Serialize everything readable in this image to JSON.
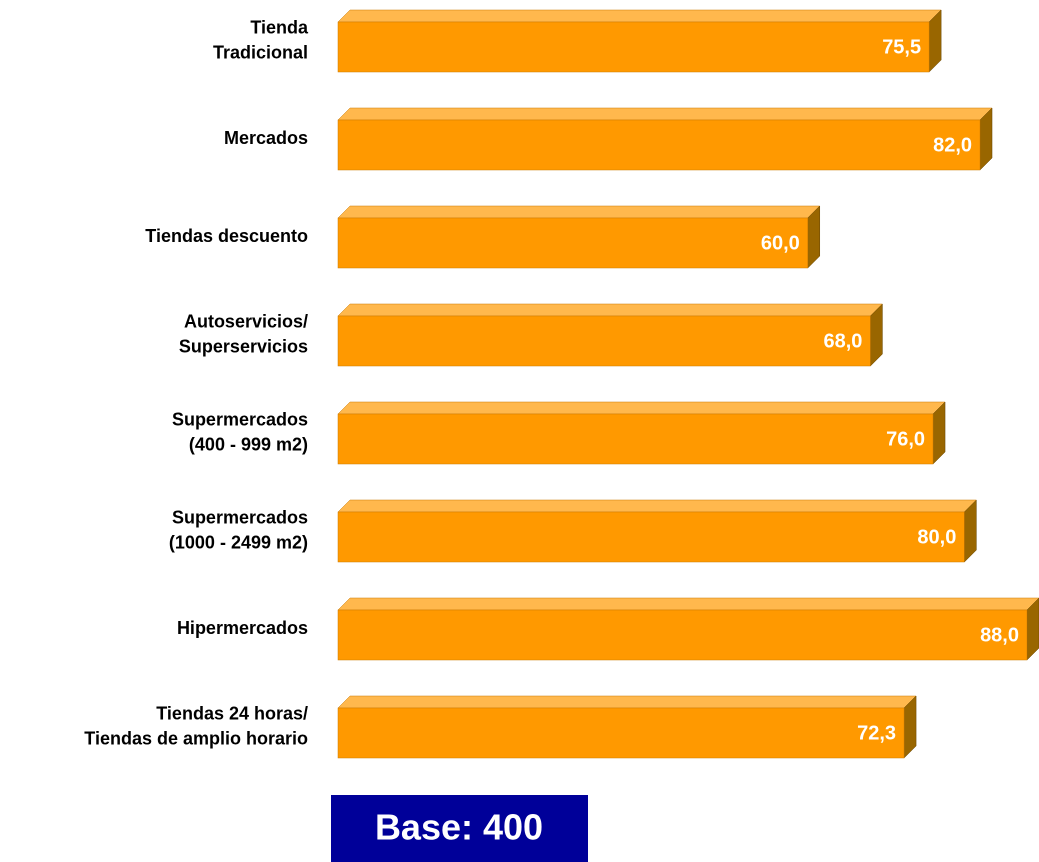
{
  "chart_data": {
    "type": "bar3d-horizontal",
    "categories": [
      [
        "Tienda",
        "Tradicional"
      ],
      [
        "Mercados"
      ],
      [
        "Tiendas descuento"
      ],
      [
        "Autoservicios/",
        "Superservicios"
      ],
      [
        "Supermercados",
        "(400 - 999 m2)"
      ],
      [
        "Supermercados",
        "(1000 - 2499 m2)"
      ],
      [
        "Hipermercados"
      ],
      [
        "Tiendas 24 horas/",
        "Tiendas de amplio horario"
      ]
    ],
    "values": [
      75.5,
      82.0,
      60.0,
      68.0,
      76.0,
      80.0,
      88.0,
      72.3
    ],
    "value_labels": [
      "75,5",
      "82,0",
      "60,0",
      "68,0",
      "76,0",
      "80,0",
      "88,0",
      "72,3"
    ],
    "color": "#ff9900",
    "note": "Base: 400"
  }
}
